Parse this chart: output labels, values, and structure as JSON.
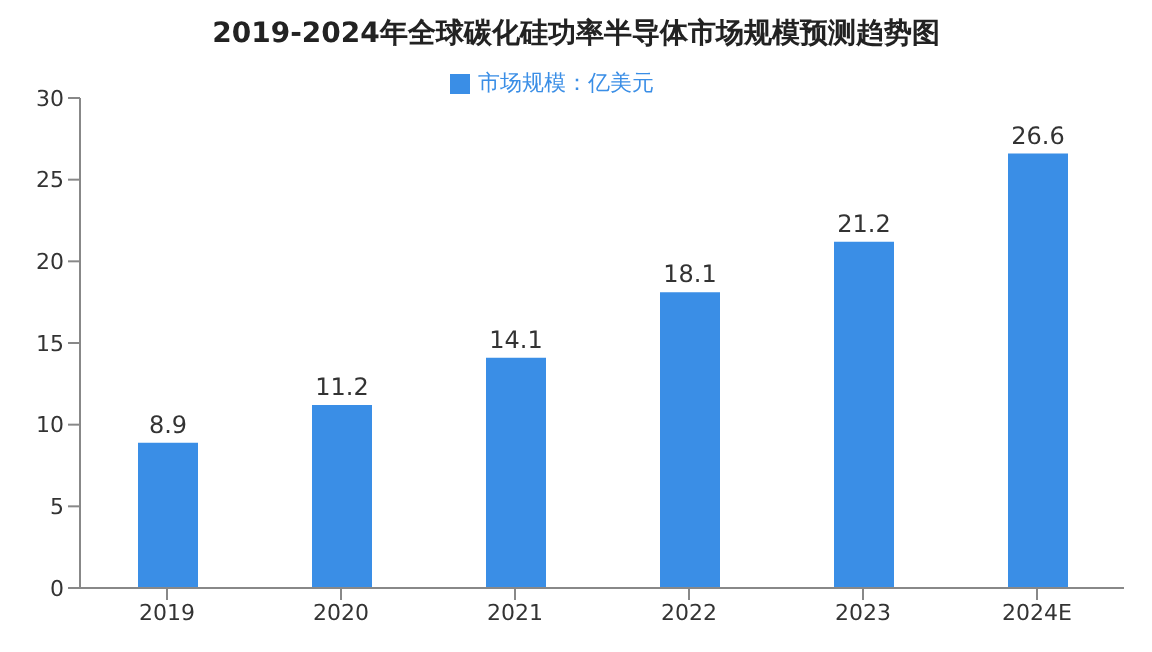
{
  "chart_data": {
    "type": "bar",
    "title": "2019-2024年全球碳化硅功率半导体市场规模预测趋势图",
    "categories": [
      "2019",
      "2020",
      "2021",
      "2022",
      "2023",
      "2024E"
    ],
    "series": [
      {
        "name": "市场规模：亿美元",
        "color": "#3a8ee6",
        "values": [
          8.9,
          11.2,
          14.1,
          18.1,
          21.2,
          26.6
        ]
      }
    ],
    "ylim": [
      0,
      30
    ],
    "yticks": [
      0,
      5,
      10,
      15,
      20,
      25,
      30
    ],
    "grid": false,
    "legend": "top",
    "data_labels": true
  }
}
